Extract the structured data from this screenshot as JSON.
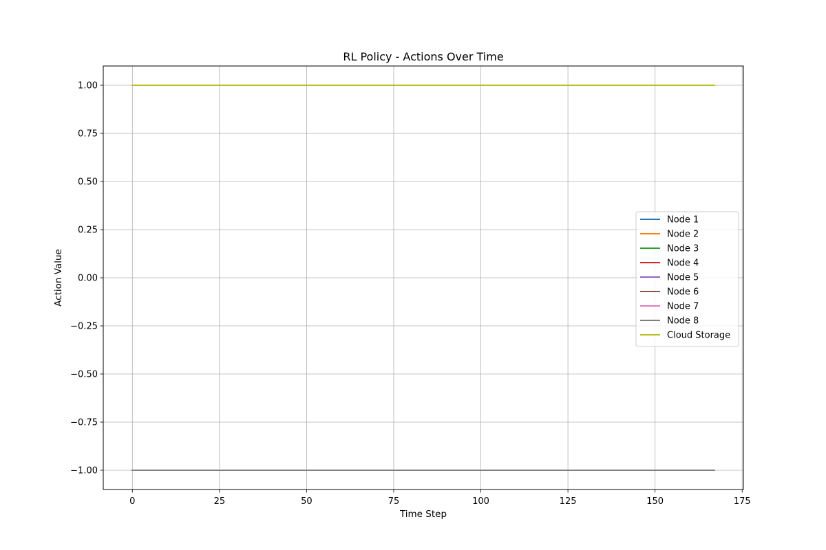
{
  "chart_data": {
    "type": "line",
    "title": "RL Policy - Actions Over Time",
    "xlabel": "Time Step",
    "ylabel": "Action Value",
    "xlim": [
      -8.35,
      175.35
    ],
    "ylim": [
      -1.1,
      1.1
    ],
    "x_ticks": [
      0,
      25,
      50,
      75,
      100,
      125,
      150,
      175
    ],
    "x_tick_labels": [
      "0",
      "25",
      "50",
      "75",
      "100",
      "125",
      "150",
      "175"
    ],
    "y_ticks": [
      1.0,
      0.75,
      0.5,
      0.25,
      0.0,
      -0.25,
      -0.5,
      -0.75,
      -1.0
    ],
    "y_tick_labels": [
      "1.00",
      "0.75",
      "0.50",
      "0.25",
      "0.00",
      "−0.25",
      "−0.50",
      "−0.75",
      "−1.00"
    ],
    "grid": true,
    "legend_position": "center-right",
    "x_range": [
      0,
      167
    ],
    "series": [
      {
        "name": "Node 1",
        "color": "#1f77b4",
        "constant_value": -1
      },
      {
        "name": "Node 2",
        "color": "#ff7f0e",
        "constant_value": -1
      },
      {
        "name": "Node 3",
        "color": "#2ca02c",
        "constant_value": -1
      },
      {
        "name": "Node 4",
        "color": "#d62728",
        "constant_value": -1
      },
      {
        "name": "Node 5",
        "color": "#9467bd",
        "constant_value": -1
      },
      {
        "name": "Node 6",
        "color": "#8c564b",
        "constant_value": -1
      },
      {
        "name": "Node 7",
        "color": "#e377c2",
        "constant_value": -1
      },
      {
        "name": "Node 8",
        "color": "#7f7f7f",
        "constant_value": -1
      },
      {
        "name": "Cloud Storage",
        "color": "#bcbd22",
        "constant_value": 1
      }
    ]
  }
}
